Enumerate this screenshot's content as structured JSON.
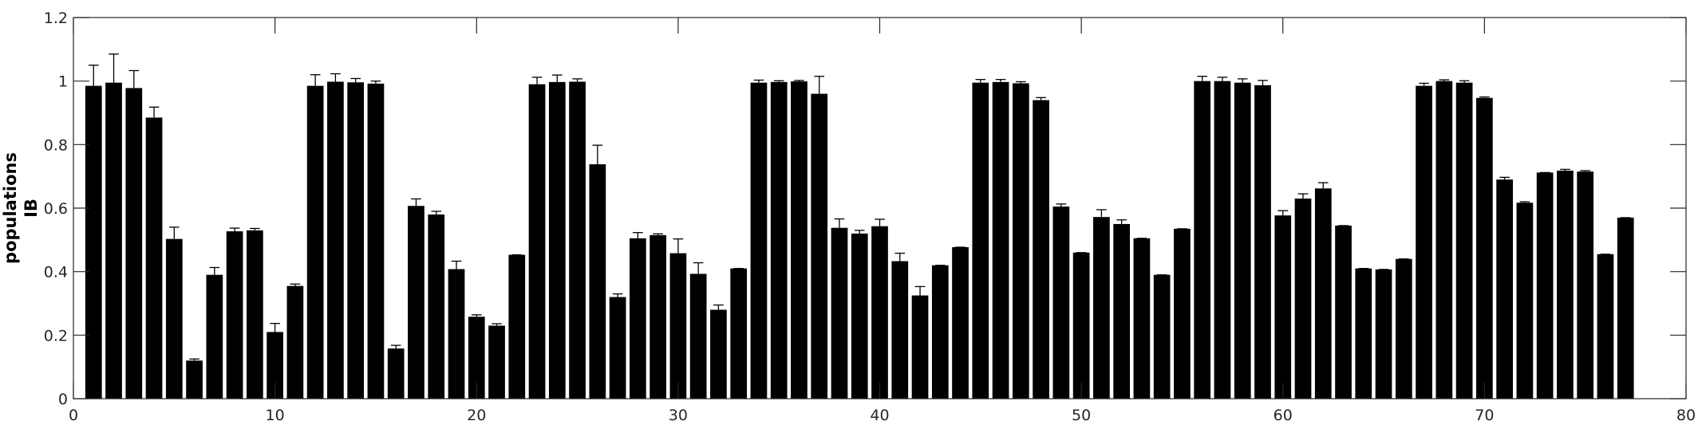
{
  "chart_data": {
    "type": "bar",
    "title": "",
    "xlabel": "",
    "ylabel_lines": [
      "populations",
      "IB"
    ],
    "xlim": [
      0,
      80
    ],
    "ylim": [
      0,
      1.2
    ],
    "xticks": [
      0,
      10,
      20,
      30,
      40,
      50,
      60,
      70,
      80
    ],
    "yticks": [
      0,
      0.2,
      0.4,
      0.6,
      0.8,
      1,
      1.2
    ],
    "xtick_labels": [
      "0",
      "10",
      "20",
      "30",
      "40",
      "50",
      "60",
      "70",
      "80"
    ],
    "ytick_labels": [
      "0",
      "0.2",
      "0.4",
      "0.6",
      "0.8",
      "1",
      "1.2"
    ],
    "grid": false,
    "bar_color": "#000000",
    "error_bars": "upper",
    "x": [
      1,
      2,
      3,
      4,
      5,
      6,
      7,
      8,
      9,
      10,
      11,
      12,
      13,
      14,
      15,
      16,
      17,
      18,
      19,
      20,
      21,
      22,
      23,
      24,
      25,
      26,
      27,
      28,
      29,
      30,
      31,
      32,
      33,
      34,
      35,
      36,
      37,
      38,
      39,
      40,
      41,
      42,
      43,
      44,
      45,
      46,
      47,
      48,
      49,
      50,
      51,
      52,
      53,
      54,
      55,
      56,
      57,
      58,
      59,
      60,
      61,
      62,
      63,
      64,
      65,
      66,
      67,
      68,
      69,
      70,
      71,
      72,
      73,
      74,
      75,
      76,
      77
    ],
    "values": [
      0.985,
      0.995,
      0.978,
      0.885,
      0.503,
      0.12,
      0.39,
      0.527,
      0.53,
      0.21,
      0.355,
      0.985,
      0.998,
      0.996,
      0.992,
      0.158,
      0.607,
      0.58,
      0.408,
      0.258,
      0.23,
      0.453,
      0.99,
      0.997,
      0.998,
      0.738,
      0.32,
      0.505,
      0.515,
      0.458,
      0.393,
      0.28,
      0.41,
      0.995,
      0.997,
      0.999,
      0.96,
      0.538,
      0.52,
      0.543,
      0.433,
      0.325,
      0.42,
      0.477,
      0.995,
      0.997,
      0.993,
      0.94,
      0.605,
      0.46,
      0.572,
      0.55,
      0.505,
      0.39,
      0.535,
      1.0,
      1.0,
      0.995,
      0.987,
      0.577,
      0.63,
      0.662,
      0.545,
      0.41,
      0.407,
      0.44,
      0.985,
      1.0,
      0.995,
      0.947,
      0.69,
      0.617,
      0.712,
      0.718,
      0.715,
      0.455,
      0.57
    ],
    "errors": [
      0.065,
      0.09,
      0.055,
      0.033,
      0.037,
      0.005,
      0.023,
      0.01,
      0.006,
      0.027,
      0.006,
      0.035,
      0.025,
      0.012,
      0.008,
      0.01,
      0.022,
      0.01,
      0.025,
      0.006,
      0.006,
      0.0,
      0.022,
      0.022,
      0.009,
      0.06,
      0.01,
      0.018,
      0.004,
      0.045,
      0.035,
      0.015,
      0.0,
      0.008,
      0.004,
      0.003,
      0.055,
      0.028,
      0.01,
      0.022,
      0.025,
      0.028,
      0.0,
      0.0,
      0.01,
      0.008,
      0.005,
      0.008,
      0.008,
      0.0,
      0.023,
      0.013,
      0.0,
      0.0,
      0.0,
      0.015,
      0.012,
      0.012,
      0.015,
      0.015,
      0.015,
      0.018,
      0.0,
      0.0,
      0.0,
      0.0,
      0.008,
      0.004,
      0.006,
      0.003,
      0.007,
      0.003,
      0.0,
      0.004,
      0.003,
      0.0,
      0.0
    ]
  }
}
